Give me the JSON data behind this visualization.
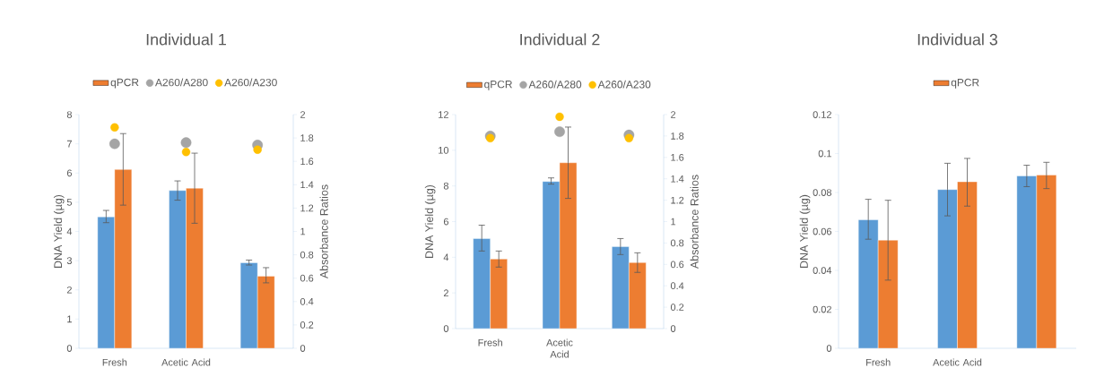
{
  "chart_data": [
    {
      "type": "bar",
      "title": "Individual 1",
      "ylabel": "DNA Yield (µg)",
      "y2label": "Absorbance Ratios",
      "categories": [
        "Fresh",
        "Acetic Acid",
        null
      ],
      "legend": "top",
      "ylim": [
        0,
        8
      ],
      "yticks": [
        0,
        1,
        2,
        3,
        4,
        5,
        6,
        7,
        8
      ],
      "y2lim": [
        0,
        2
      ],
      "y2ticks": [
        0,
        0.2,
        0.4,
        0.6,
        0.8,
        1,
        1.2,
        1.4,
        1.6,
        1.8,
        2
      ],
      "series": [
        {
          "color": "#5b9bd5",
          "values": [
            4.5,
            5.4,
            2.93
          ],
          "errors": [
            [
              4.3,
              4.72
            ],
            [
              5.07,
              5.73
            ],
            [
              2.85,
              3.02
            ]
          ]
        },
        {
          "name": "qPCR",
          "color": "#ed7d31",
          "values": [
            6.12,
            5.48,
            2.47
          ],
          "errors": [
            [
              4.9,
              7.35
            ],
            [
              4.28,
              6.68
            ],
            [
              2.24,
              2.76
            ]
          ]
        },
        {
          "name": "A260/A280",
          "type": "scatter",
          "axis": "y2",
          "marker": "circle",
          "color": "#a5a5a5",
          "values": [
            1.75,
            1.76,
            1.74
          ]
        },
        {
          "name": "A260/A230",
          "type": "scatter",
          "axis": "y2",
          "marker": "circle",
          "color": "#ffc000",
          "values": [
            1.89,
            1.68,
            1.7
          ]
        }
      ]
    },
    {
      "type": "bar",
      "title": "Individual 2",
      "ylabel": "DNA Yield (µg)",
      "y2label": "Absorbance Ratios",
      "categories": [
        "Fresh",
        "Acetic Acid",
        null
      ],
      "legend": "top",
      "ylim": [
        0,
        12
      ],
      "yticks": [
        0,
        2,
        4,
        6,
        8,
        10,
        12
      ],
      "y2lim": [
        0,
        2
      ],
      "y2ticks": [
        0,
        0.2,
        0.4,
        0.6,
        0.8,
        1,
        1.2,
        1.4,
        1.6,
        1.8,
        2
      ],
      "series": [
        {
          "color": "#5b9bd5",
          "values": [
            5.05,
            8.25,
            4.6
          ],
          "errors": [
            [
              4.35,
              5.8
            ],
            [
              8.1,
              8.45
            ],
            [
              4.15,
              5.05
            ]
          ]
        },
        {
          "name": "qPCR",
          "color": "#ed7d31",
          "values": [
            3.9,
            9.3,
            3.7
          ],
          "errors": [
            [
              3.45,
              4.35
            ],
            [
              7.3,
              11.3
            ],
            [
              3.15,
              4.25
            ]
          ]
        },
        {
          "name": "A260/A280",
          "type": "scatter",
          "axis": "y2",
          "marker": "circle",
          "color": "#a5a5a5",
          "values": [
            1.8,
            1.84,
            1.81
          ]
        },
        {
          "name": "A260/A230",
          "type": "scatter",
          "axis": "y2",
          "marker": "circle",
          "color": "#ffc000",
          "values": [
            1.78,
            1.98,
            1.78
          ]
        }
      ]
    },
    {
      "type": "bar",
      "title": "Individual 3",
      "ylabel": "DNA Yield (µg)",
      "categories": [
        "Fresh",
        "Acetic Acid",
        null
      ],
      "legend": "top",
      "ylim": [
        0,
        0.12
      ],
      "yticks": [
        0,
        0.02,
        0.04,
        0.06,
        0.08,
        0.1,
        0.12
      ],
      "series": [
        {
          "color": "#5b9bd5",
          "values": [
            0.066,
            0.0815,
            0.0885
          ],
          "errors": [
            [
              0.056,
              0.0765
            ],
            [
              0.068,
              0.095
            ],
            [
              0.083,
              0.094
            ]
          ]
        },
        {
          "name": "qPCR",
          "color": "#ed7d31",
          "values": [
            0.0555,
            0.0855,
            0.089
          ],
          "errors": [
            [
              0.035,
              0.076
            ],
            [
              0.073,
              0.0975
            ],
            [
              0.082,
              0.0955
            ]
          ]
        }
      ]
    }
  ]
}
